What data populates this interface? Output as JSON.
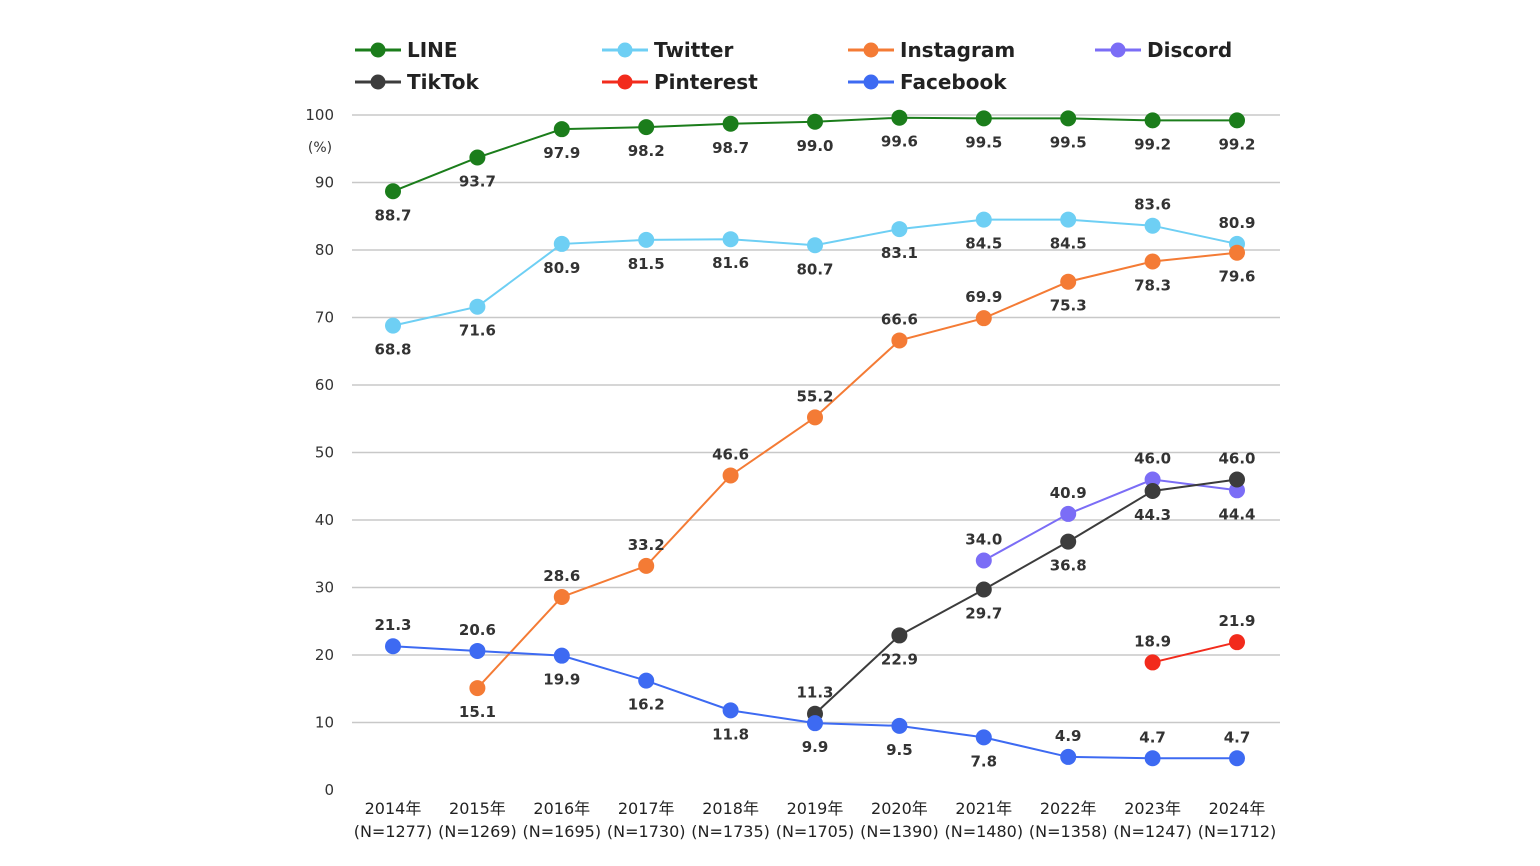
{
  "chart_data": {
    "type": "line",
    "title": "",
    "y_unit_label": "(%)",
    "ylim": [
      0,
      100
    ],
    "yticks": [
      0,
      10,
      20,
      30,
      40,
      50,
      60,
      70,
      80,
      90,
      100
    ],
    "grid": true,
    "legend_position": "top",
    "categories": [
      "2014年",
      "2015年",
      "2016年",
      "2017年",
      "2018年",
      "2019年",
      "2020年",
      "2021年",
      "2022年",
      "2023年",
      "2024年"
    ],
    "category_sublabels": [
      "(N=1277)",
      "(N=1269)",
      "(N=1695)",
      "(N=1730)",
      "(N=1735)",
      "(N=1705)",
      "(N=1390)",
      "(N=1480)",
      "(N=1358)",
      "(N=1247)",
      "(N=1712)"
    ],
    "series": [
      {
        "name": "LINE",
        "color": "#1b7d1b",
        "values": [
          88.7,
          93.7,
          97.9,
          98.2,
          98.7,
          99.0,
          99.6,
          99.5,
          99.5,
          99.2,
          99.2
        ]
      },
      {
        "name": "Twitter",
        "color": "#6ecff4",
        "values": [
          68.8,
          71.6,
          80.9,
          81.5,
          81.6,
          80.7,
          83.1,
          84.5,
          84.5,
          83.6,
          80.9
        ]
      },
      {
        "name": "Instagram",
        "color": "#f47b35",
        "values": [
          null,
          15.1,
          28.6,
          33.2,
          46.6,
          55.2,
          66.6,
          69.9,
          75.3,
          78.3,
          79.6
        ]
      },
      {
        "name": "Discord",
        "color": "#7b6df6",
        "values": [
          null,
          null,
          null,
          null,
          null,
          null,
          null,
          34.0,
          40.9,
          46.0,
          44.4
        ]
      },
      {
        "name": "TikTok",
        "color": "#3c3c3c",
        "values": [
          null,
          null,
          null,
          null,
          null,
          11.3,
          22.9,
          29.7,
          36.8,
          44.3,
          46.0
        ]
      },
      {
        "name": "Pinterest",
        "color": "#f22b1c",
        "values": [
          null,
          null,
          null,
          null,
          null,
          null,
          null,
          null,
          null,
          18.9,
          21.9
        ]
      },
      {
        "name": "Facebook",
        "color": "#3d6af2",
        "values": [
          21.3,
          20.6,
          19.9,
          16.2,
          11.8,
          9.9,
          9.5,
          7.8,
          4.9,
          4.7,
          4.7
        ]
      }
    ],
    "data_labels": [
      {
        "series": "LINE",
        "labels": [
          "88.7",
          "93.7",
          "97.9",
          "98.2",
          "98.7",
          "99.0",
          "99.6",
          "99.5",
          "99.5",
          "99.2",
          "99.2"
        ],
        "side": [
          "below",
          "below",
          "below",
          "below",
          "below",
          "below",
          "below",
          "below",
          "below",
          "below",
          "below"
        ]
      },
      {
        "series": "Twitter",
        "labels": [
          "68.8",
          "71.6",
          "80.9",
          "81.5",
          "81.6",
          "80.7",
          "83.1",
          "84.5",
          "84.5",
          "83.6",
          "80.9"
        ],
        "side": [
          "below",
          "below",
          "below",
          "below",
          "below",
          "below",
          "below",
          "below",
          "below",
          "above",
          "above"
        ]
      },
      {
        "series": "Instagram",
        "labels": [
          null,
          "15.1",
          "28.6",
          "33.2",
          "46.6",
          "55.2",
          "66.6",
          "69.9",
          "75.3",
          "78.3",
          "79.6"
        ],
        "side": [
          null,
          "below",
          "above",
          "above",
          "above",
          "above",
          "above",
          "above",
          "below",
          "below",
          "below"
        ]
      },
      {
        "series": "Discord",
        "labels": [
          null,
          null,
          null,
          null,
          null,
          null,
          null,
          "34.0",
          "40.9",
          "46.0",
          "44.4"
        ],
        "side": [
          null,
          null,
          null,
          null,
          null,
          null,
          null,
          "above",
          "above",
          "above",
          "below"
        ]
      },
      {
        "series": "TikTok",
        "labels": [
          null,
          null,
          null,
          null,
          null,
          "11.3",
          "22.9",
          "29.7",
          "36.8",
          "44.3",
          "46.0"
        ],
        "side": [
          null,
          null,
          null,
          null,
          null,
          "above",
          "below",
          "below",
          "below",
          "below",
          "above"
        ]
      },
      {
        "series": "Pinterest",
        "labels": [
          null,
          null,
          null,
          null,
          null,
          null,
          null,
          null,
          null,
          "18.9",
          "21.9"
        ],
        "side": [
          null,
          null,
          null,
          null,
          null,
          null,
          null,
          null,
          null,
          "above",
          "above"
        ]
      },
      {
        "series": "Facebook",
        "labels": [
          "21.3",
          "20.6",
          "19.9",
          "16.2",
          "11.8",
          "9.9",
          "9.5",
          "7.8",
          "4.9",
          "4.7",
          "4.7"
        ],
        "side": [
          "above",
          "above",
          "below",
          "below",
          "below",
          "below",
          "below",
          "below",
          "above",
          "above",
          "above"
        ]
      }
    ]
  }
}
